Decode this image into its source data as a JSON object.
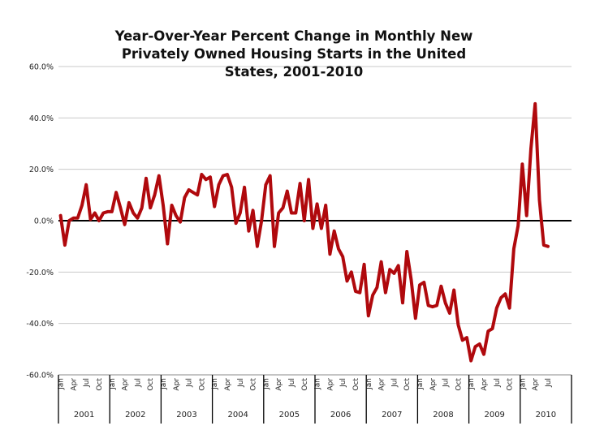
{
  "chart_data": {
    "type": "line",
    "title_lines": [
      "Year-Over-Year Percent Change in Monthly New",
      "Privately Owned Housing Starts in the United",
      "States, 2001-2010"
    ],
    "y_ticks": [
      "60.0%",
      "40.0%",
      "20.0%",
      "0.0%",
      "-20.0%",
      "-40.0%",
      "-60.0%"
    ],
    "ylim": [
      -60,
      60
    ],
    "grid": true,
    "legend": "none",
    "month_labels": [
      "Jan",
      "Apr",
      "Jul",
      "Oct"
    ],
    "years": [
      "2001",
      "2002",
      "2003",
      "2004",
      "2005",
      "2006",
      "2007",
      "2008",
      "2009",
      "2010"
    ],
    "x_start": "2001-01",
    "x_end": "2010-07",
    "series_color": "#b0090d",
    "zero_line_color": "#000000",
    "values": [
      2,
      -9.5,
      0,
      1,
      1,
      6,
      14,
      0.5,
      3,
      0,
      3,
      3.5,
      3.5,
      11,
      5,
      -1.5,
      7,
      3,
      1,
      5,
      16.5,
      5,
      10,
      17.5,
      6,
      -9,
      6,
      2,
      -0.5,
      9,
      12,
      11,
      10,
      18,
      16,
      17,
      5.5,
      14,
      17.5,
      18,
      13,
      -1,
      3,
      13,
      -4,
      4,
      -10,
      0,
      14,
      17.5,
      -10,
      3,
      5,
      11.5,
      3,
      3,
      14.5,
      0,
      16,
      -3,
      6.5,
      -3,
      6,
      -13,
      -4,
      -11,
      -14,
      -23.5,
      -20,
      -27.5,
      -28,
      -17,
      -37,
      -29,
      -26,
      -16,
      -28,
      -19,
      -20.5,
      -17.5,
      -32,
      -12,
      -23,
      -38,
      -25,
      -24,
      -33,
      -33.5,
      -33,
      -25.5,
      -32,
      -36,
      -27,
      -40.5,
      -46.5,
      -45.5,
      -54.5,
      -49,
      -48,
      -52,
      -43,
      -42,
      -34,
      -30,
      -28.5,
      -34,
      -11,
      -2,
      22,
      2,
      28,
      45.5,
      8,
      -9.5,
      -10
    ]
  }
}
